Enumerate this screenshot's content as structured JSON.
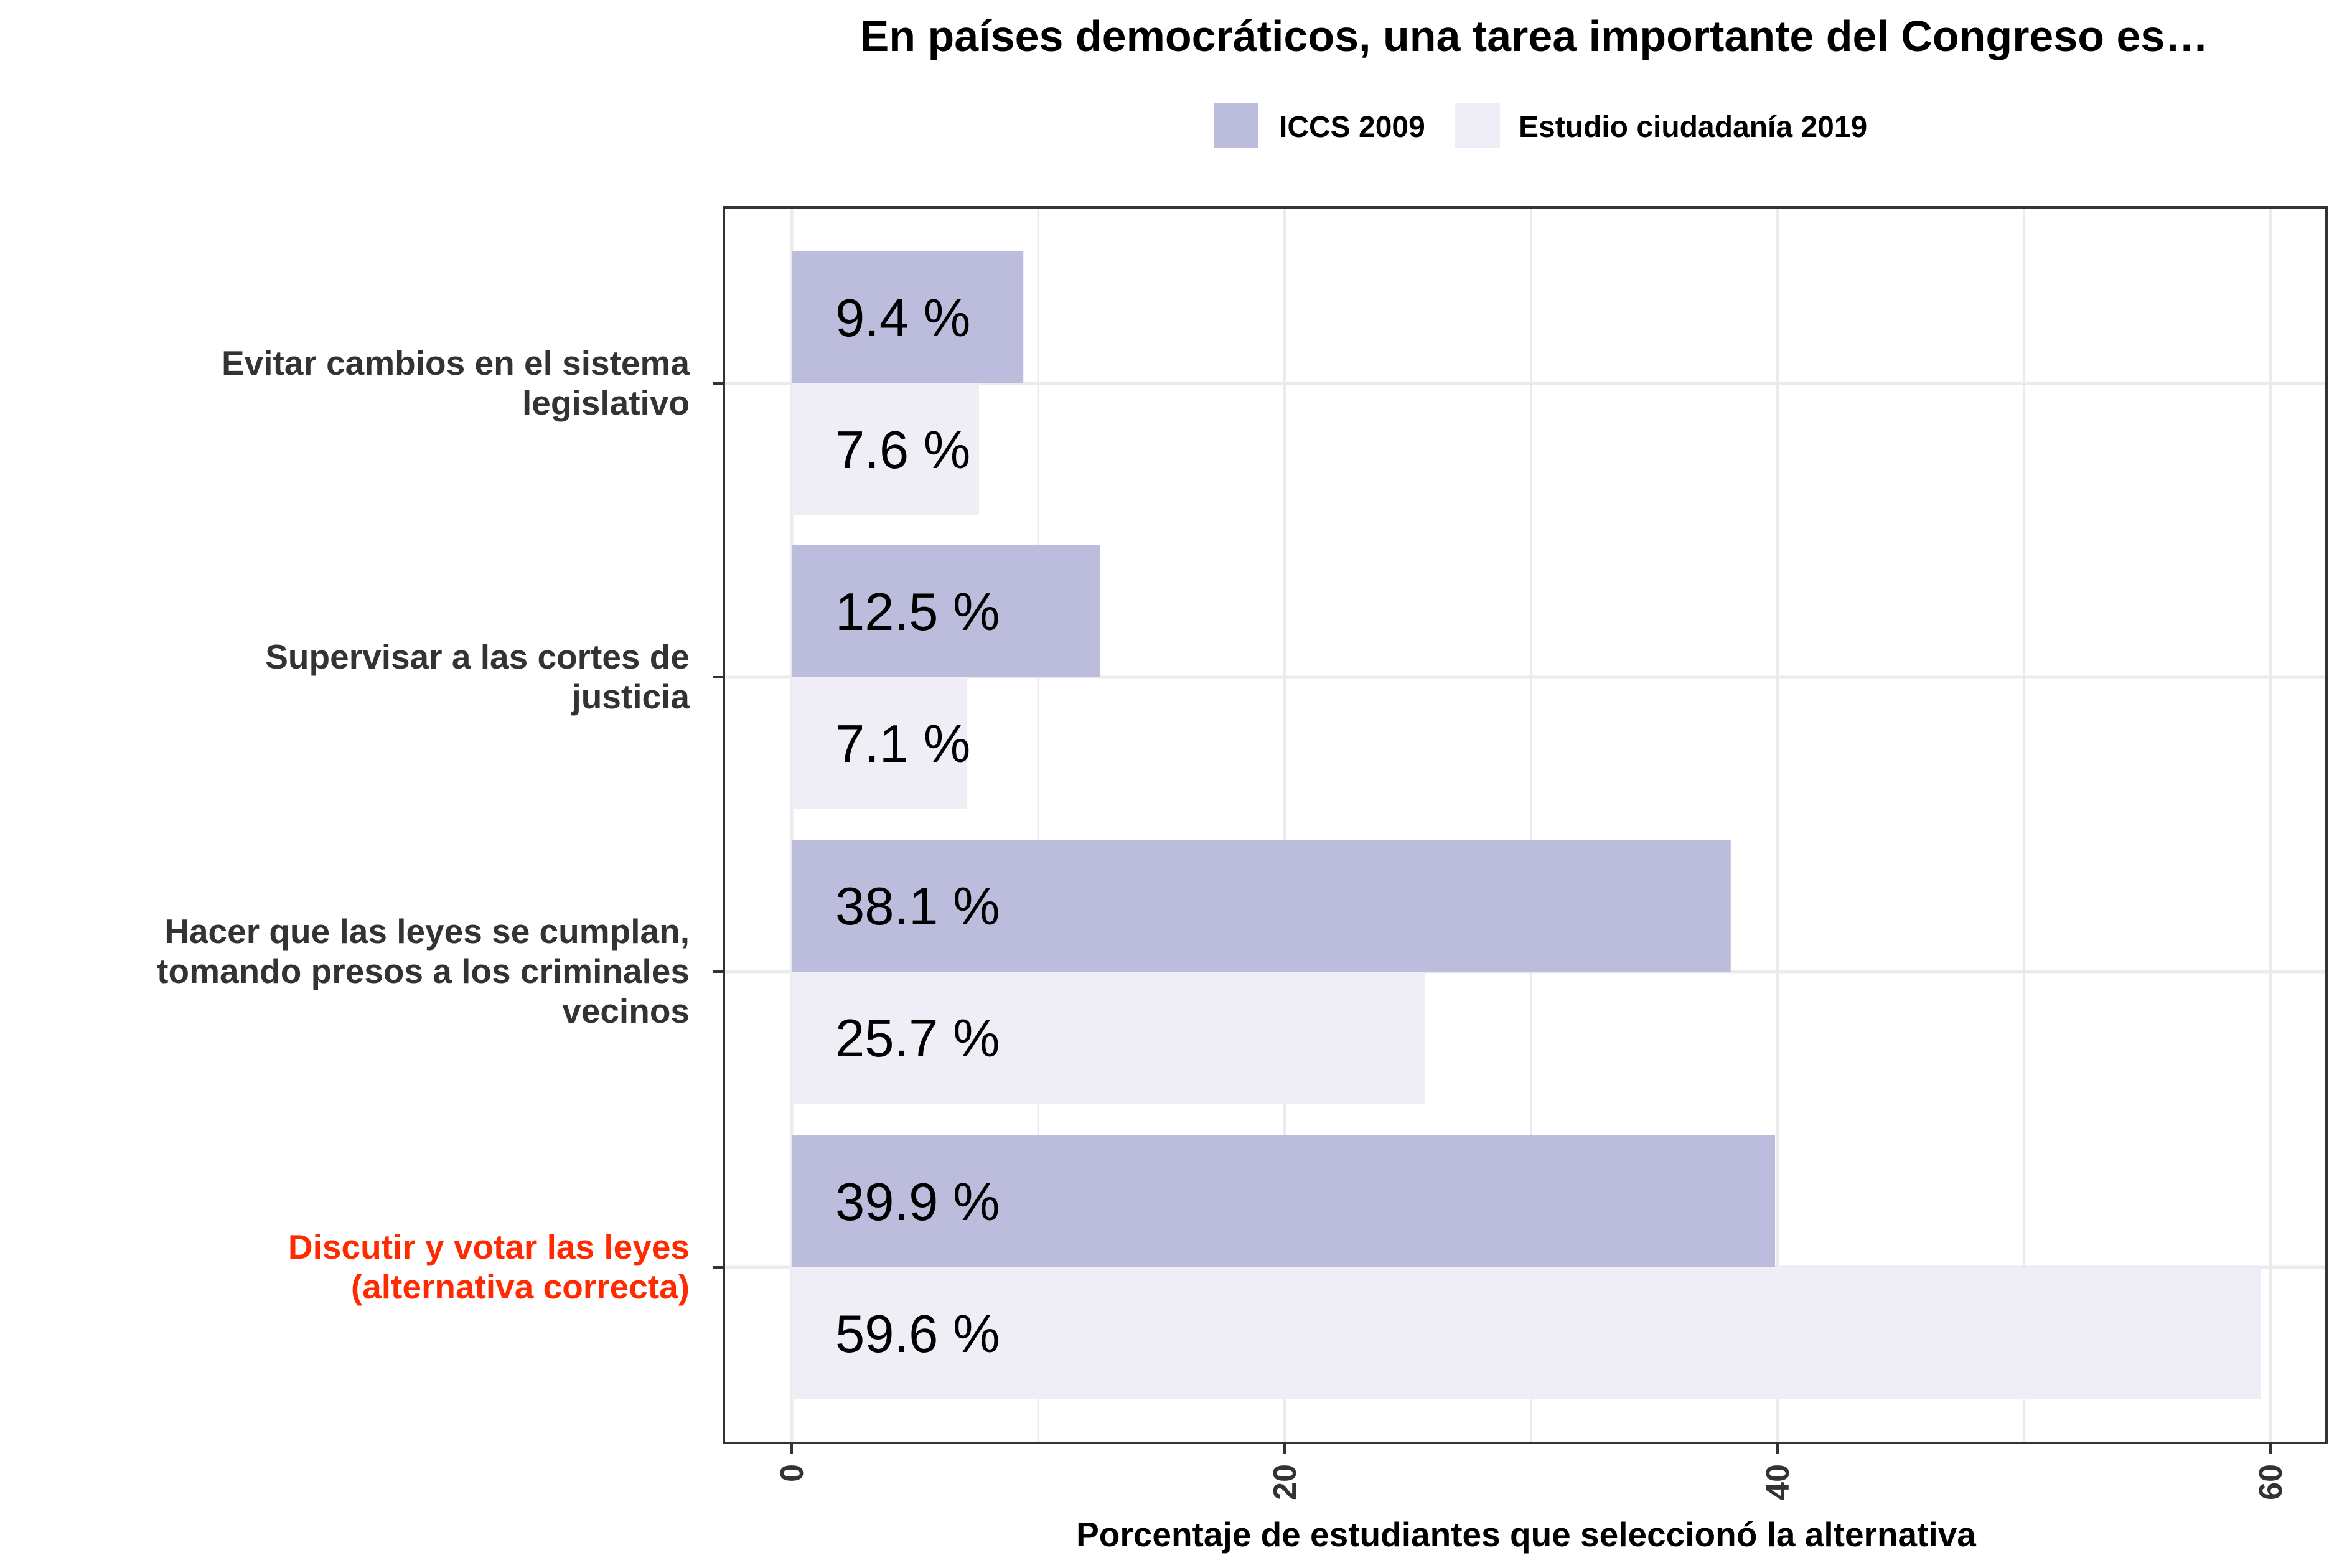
{
  "chart_data": {
    "type": "bar",
    "orientation": "horizontal",
    "title": "En países democráticos, una tarea importante del Congreso es…",
    "xlabel": "Porcentaje de estudiantes que seleccionó la alternativa",
    "ylabel": "",
    "xlim": [
      -3,
      62
    ],
    "xticks": [
      0,
      20,
      40,
      60
    ],
    "grid": true,
    "legend_position": "top",
    "categories": [
      {
        "lines": [
          "Evitar  cambios  en el sistema",
          "legislativo  "
        ],
        "highlight": false
      },
      {
        "lines": [
          "Supervisar  a las cortes  de",
          "justicia  "
        ],
        "highlight": false
      },
      {
        "lines": [
          "Hacer  que  las leyes  se cumplan,",
          "tomando  presos  a los criminales",
          "vecinos  "
        ],
        "highlight": false
      },
      {
        "lines": [
          "Discutir  y votar  las leyes",
          "(alternativa  correcta)  "
        ],
        "highlight": true
      }
    ],
    "series": [
      {
        "name": "ICCS 2009",
        "color": "#bcbddc",
        "values": [
          9.4,
          12.5,
          38.1,
          39.9
        ],
        "labels": [
          "9.4 %",
          "12.5 %",
          "38.1 %",
          "39.9 %"
        ]
      },
      {
        "name": "Estudio ciudadanía 2019",
        "color": "#efedf5",
        "values": [
          7.6,
          7.1,
          25.7,
          59.6
        ],
        "labels": [
          "7.6 %",
          "7.1 %",
          "25.7 %",
          "59.6 %"
        ]
      }
    ]
  }
}
